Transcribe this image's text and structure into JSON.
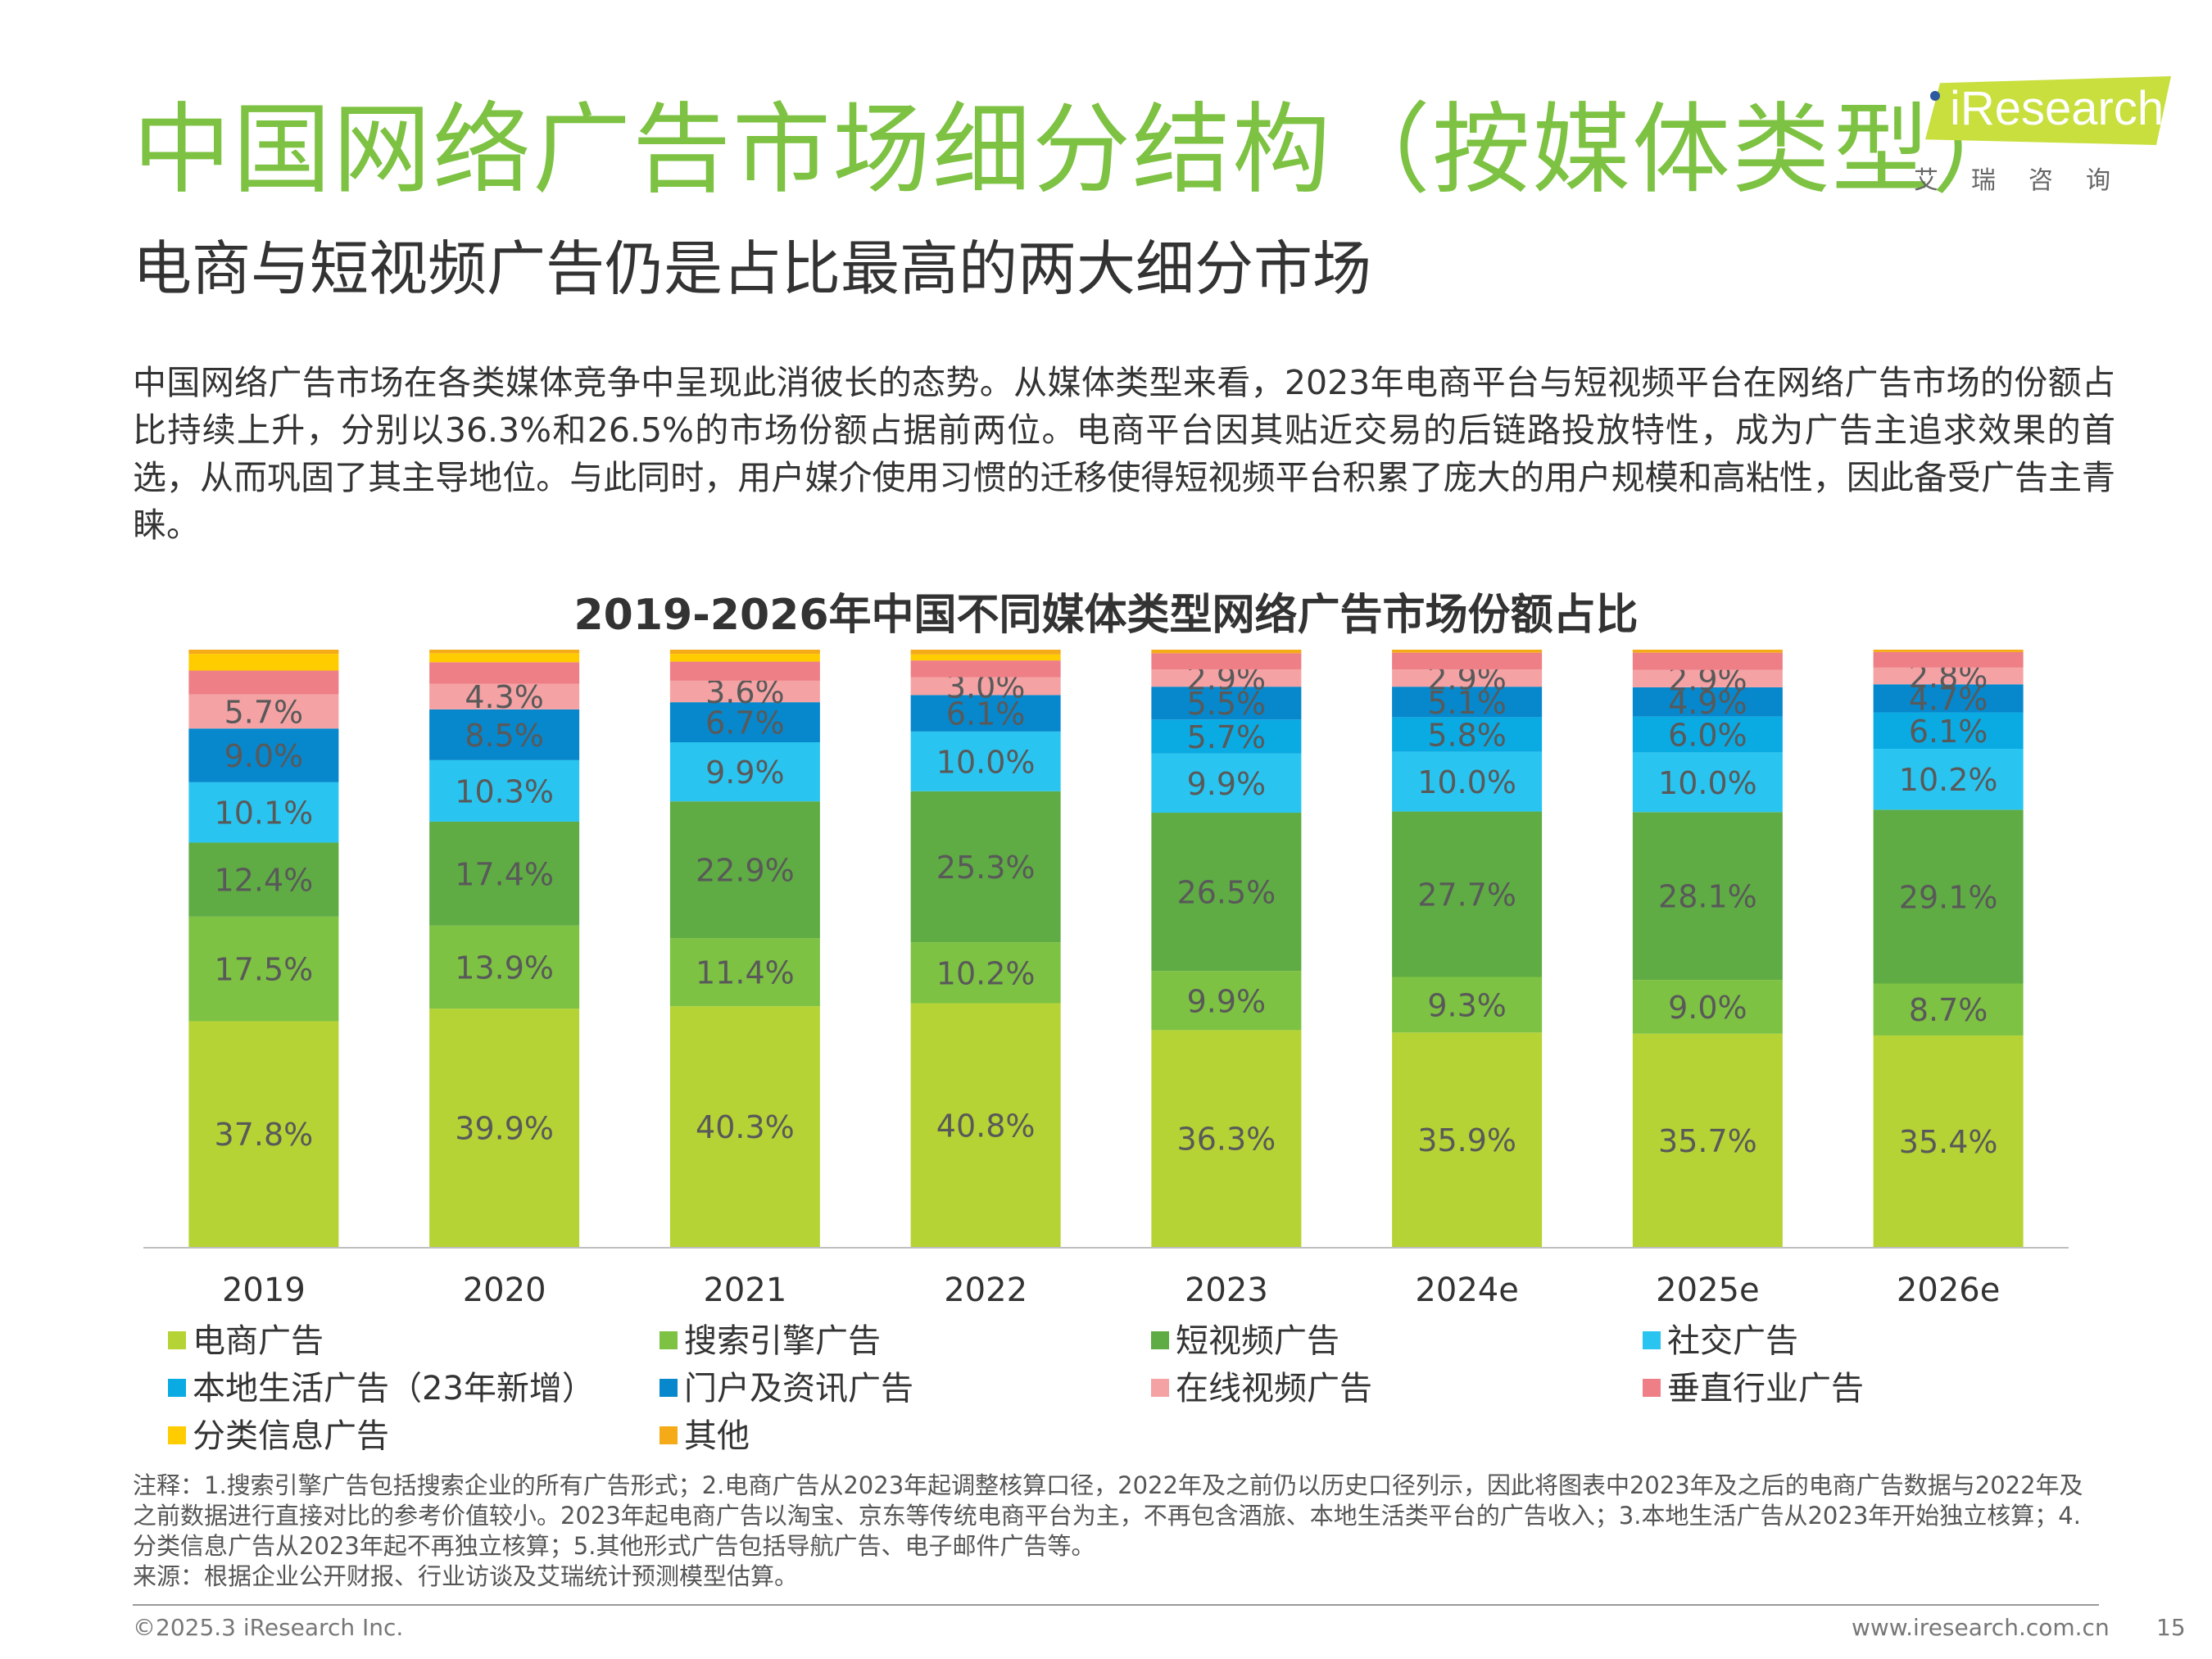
{
  "header": {
    "title": "中国网络广告市场细分结构（按媒体类型）",
    "subtitle": "电商与短视频广告仍是占比最高的两大细分市场",
    "body": "中国网络广告市场在各类媒体竞争中呈现此消彼长的态势。从媒体类型来看，2023年电商平台与短视频平台在网络广告市场的份额占比持续上升，分别以36.3%和26.5%的市场份额占据前两位。电商平台因其贴近交易的后链路投放特性，成为广告主追求效果的首选，从而巩固了其主导地位。与此同时，用户媒介使用习惯的迁移使得短视频平台积累了庞大的用户规模和高粘性，因此备受广告主青睐。"
  },
  "logo": {
    "text": "iResearch",
    "sub": "艾瑞咨询"
  },
  "chart_data": {
    "type": "bar",
    "stacked": true,
    "title": "2019-2026年中国不同媒体类型网络广告市场份额占比",
    "categories": [
      "2019",
      "2020",
      "2021",
      "2022",
      "2023",
      "2024e",
      "2025e",
      "2026e"
    ],
    "ylim": [
      0,
      100
    ],
    "legend_position": "bottom",
    "series": [
      {
        "name": "电商广告",
        "color": "#b5d334",
        "values": [
          37.8,
          39.9,
          40.3,
          40.8,
          36.3,
          35.9,
          35.7,
          35.4
        ],
        "labels": [
          "37.8%",
          "39.9%",
          "40.3%",
          "40.8%",
          "36.3%",
          "35.9%",
          "35.7%",
          "35.4%"
        ]
      },
      {
        "name": "搜索引擎广告",
        "color": "#7dc242",
        "values": [
          17.5,
          13.9,
          11.4,
          10.2,
          9.9,
          9.3,
          9.0,
          8.7
        ],
        "labels": [
          "17.5%",
          "13.9%",
          "11.4%",
          "10.2%",
          "9.9%",
          "9.3%",
          "9.0%",
          "8.7%"
        ]
      },
      {
        "name": "短视频广告",
        "color": "#5fac44",
        "values": [
          12.4,
          17.4,
          22.9,
          25.3,
          26.5,
          27.7,
          28.1,
          29.1
        ],
        "labels": [
          "12.4%",
          "17.4%",
          "22.9%",
          "25.3%",
          "26.5%",
          "27.7%",
          "28.1%",
          "29.1%"
        ]
      },
      {
        "name": "社交广告",
        "color": "#29c5f0",
        "values": [
          10.1,
          10.3,
          9.9,
          10.0,
          9.9,
          10.0,
          10.0,
          10.2
        ],
        "labels": [
          "10.1%",
          "10.3%",
          "9.9%",
          "10.0%",
          "9.9%",
          "10.0%",
          "10.0%",
          "10.2%"
        ]
      },
      {
        "name": "本地生活广告（23年新增）",
        "color": "#0aaae3",
        "values": [
          0,
          0,
          0,
          0,
          5.7,
          5.8,
          6.0,
          6.1
        ],
        "labels": [
          "",
          "",
          "",
          "",
          "5.7%",
          "5.8%",
          "6.0%",
          "6.1%"
        ]
      },
      {
        "name": "门户及资讯广告",
        "color": "#0787cc",
        "values": [
          9.0,
          8.5,
          6.7,
          6.1,
          5.5,
          5.1,
          4.9,
          4.7
        ],
        "labels": [
          "9.0%",
          "8.5%",
          "6.7%",
          "6.1%",
          "5.5%",
          "5.1%",
          "4.9%",
          "4.7%"
        ]
      },
      {
        "name": "在线视频广告",
        "color": "#f5a2a4",
        "values": [
          5.7,
          4.3,
          3.6,
          3.0,
          2.9,
          2.9,
          2.9,
          2.8
        ],
        "labels": [
          "5.7%",
          "4.3%",
          "3.6%",
          "3.0%",
          "2.9%",
          "2.9%",
          "2.9%",
          "2.8%"
        ]
      },
      {
        "name": "垂直行业广告",
        "color": "#ee7f86",
        "values": [
          4.0,
          3.6,
          3.2,
          2.8,
          2.7,
          2.8,
          2.9,
          2.6
        ],
        "labels": [
          "",
          "",
          "",
          "",
          "",
          "",
          "",
          ""
        ]
      },
      {
        "name": "分类信息广告",
        "color": "#ffcc00",
        "values": [
          2.8,
          1.5,
          1.3,
          1.0,
          0,
          0,
          0,
          0
        ],
        "labels": [
          "",
          "",
          "",
          "",
          "",
          "",
          "",
          ""
        ]
      },
      {
        "name": "其他",
        "color": "#f5ab18",
        "values": [
          0.7,
          0.6,
          0.7,
          0.8,
          0.6,
          0.5,
          0.5,
          0.4
        ],
        "labels": [
          "",
          "",
          "",
          "",
          "",
          "",
          "",
          ""
        ]
      }
    ]
  },
  "notes": {
    "line1": "注释：1.搜索引擎广告包括搜索企业的所有广告形式；2.电商广告从2023年起调整核算口径，2022年及之前仍以历史口径列示，因此将图表中2023年及之后的电商广告数据与2022年及之前数据进行直接对比的参考价值较小。2023年起电商广告以淘宝、京东等传统电商平台为主，不再包含酒旅、本地生活类平台的广告收入；3.本地生活广告从2023年开始独立核算；4.分类信息广告从2023年起不再独立核算；5.其他形式广告包括导航广告、电子邮件广告等。",
    "line2": "来源：根据企业公开财报、行业访谈及艾瑞统计预测模型估算。"
  },
  "footer": {
    "copyright": "©2025.3 iResearch Inc.",
    "url": "www.iresearch.com.cn",
    "page": "15"
  }
}
